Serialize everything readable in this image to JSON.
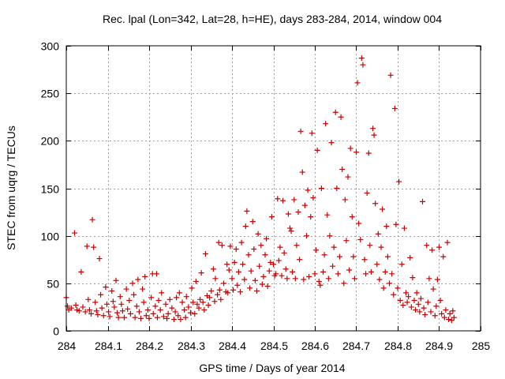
{
  "chart_data": {
    "type": "scatter",
    "title": "Rec. lpal (Lon=342, Lat=28, h=HE), days 283-284, 2014, window 004",
    "xlabel": "GPS time / Days of year 2014",
    "ylabel": "STEC from uqrg / TECUs",
    "xlim": [
      284,
      285
    ],
    "ylim": [
      0,
      300
    ],
    "grid": true,
    "marker": "plus",
    "colors": {
      "points": "#cc0000",
      "grid": "#a0a0a0",
      "axis": "#000000"
    },
    "x_ticks": [
      284,
      284.1,
      284.2,
      284.3,
      284.4,
      284.5,
      284.6,
      284.7,
      284.8,
      284.9,
      285
    ],
    "x_tick_labels": [
      "284",
      "284.1",
      "284.2",
      "284.3",
      "284.4",
      "284.5",
      "284.6",
      "284.7",
      "284.8",
      "284.9",
      "285"
    ],
    "y_ticks": [
      0,
      50,
      100,
      150,
      200,
      250,
      300
    ],
    "y_tick_labels": [
      "0",
      "50",
      "100",
      "150",
      "200",
      "250",
      "300"
    ],
    "series": [
      {
        "name": "STEC",
        "points": [
          [
            284.0,
            35
          ],
          [
            284.003,
            26
          ],
          [
            284.006,
            22
          ],
          [
            284.012,
            24
          ],
          [
            284.02,
            103
          ],
          [
            284.023,
            27
          ],
          [
            284.026,
            22
          ],
          [
            284.031,
            21
          ],
          [
            284.036,
            62
          ],
          [
            284.04,
            25
          ],
          [
            284.046,
            20
          ],
          [
            284.05,
            89
          ],
          [
            284.053,
            33
          ],
          [
            284.056,
            22
          ],
          [
            284.06,
            18
          ],
          [
            284.063,
            117
          ],
          [
            284.066,
            88
          ],
          [
            284.07,
            30
          ],
          [
            284.073,
            21
          ],
          [
            284.076,
            17
          ],
          [
            284.08,
            76
          ],
          [
            284.083,
            38
          ],
          [
            284.086,
            24
          ],
          [
            284.09,
            16
          ],
          [
            284.095,
            46
          ],
          [
            284.098,
            28
          ],
          [
            284.102,
            20
          ],
          [
            284.105,
            15
          ],
          [
            284.11,
            42
          ],
          [
            284.113,
            31
          ],
          [
            284.116,
            25
          ],
          [
            284.12,
            53
          ],
          [
            284.123,
            19
          ],
          [
            284.126,
            14
          ],
          [
            284.13,
            36
          ],
          [
            284.133,
            28
          ],
          [
            284.136,
            21
          ],
          [
            284.14,
            14
          ],
          [
            284.145,
            44
          ],
          [
            284.148,
            23
          ],
          [
            284.152,
            32
          ],
          [
            284.155,
            18
          ],
          [
            284.16,
            50
          ],
          [
            284.163,
            38
          ],
          [
            284.166,
            14
          ],
          [
            284.17,
            26
          ],
          [
            284.173,
            54
          ],
          [
            284.176,
            20
          ],
          [
            284.18,
            13
          ],
          [
            284.184,
            44
          ],
          [
            284.187,
            30
          ],
          [
            284.19,
            57
          ],
          [
            284.193,
            16
          ],
          [
            284.197,
            22
          ],
          [
            284.2,
            13
          ],
          [
            284.205,
            35
          ],
          [
            284.208,
            60
          ],
          [
            284.21,
            18
          ],
          [
            284.215,
            26
          ],
          [
            284.218,
            60
          ],
          [
            284.22,
            14
          ],
          [
            284.223,
            32
          ],
          [
            284.227,
            22
          ],
          [
            284.23,
            40
          ],
          [
            284.235,
            15
          ],
          [
            284.24,
            28
          ],
          [
            284.243,
            13
          ],
          [
            284.246,
            18
          ],
          [
            284.25,
            33
          ],
          [
            284.255,
            24
          ],
          [
            284.26,
            12
          ],
          [
            284.263,
            20
          ],
          [
            284.266,
            35
          ],
          [
            284.27,
            16
          ],
          [
            284.273,
            40
          ],
          [
            284.276,
            12
          ],
          [
            284.28,
            30
          ],
          [
            284.285,
            22
          ],
          [
            284.288,
            14
          ],
          [
            284.29,
            36
          ],
          [
            284.295,
            25
          ],
          [
            284.3,
            19
          ],
          [
            284.303,
            45
          ],
          [
            284.306,
            30
          ],
          [
            284.31,
            18
          ],
          [
            284.313,
            52
          ],
          [
            284.316,
            28
          ],
          [
            284.32,
            24
          ],
          [
            284.323,
            33
          ],
          [
            284.326,
            61
          ],
          [
            284.33,
            30
          ],
          [
            284.333,
            22
          ],
          [
            284.336,
            81
          ],
          [
            284.34,
            37
          ],
          [
            284.343,
            27
          ],
          [
            284.346,
            35
          ],
          [
            284.35,
            42
          ],
          [
            284.355,
            65
          ],
          [
            284.358,
            31
          ],
          [
            284.36,
            55
          ],
          [
            284.365,
            38
          ],
          [
            284.368,
            93
          ],
          [
            284.37,
            43
          ],
          [
            284.373,
            33
          ],
          [
            284.376,
            90
          ],
          [
            284.38,
            50
          ],
          [
            284.385,
            41
          ],
          [
            284.388,
            70
          ],
          [
            284.39,
            40
          ],
          [
            284.393,
            64
          ],
          [
            284.396,
            89
          ],
          [
            284.4,
            55
          ],
          [
            284.403,
            43
          ],
          [
            284.406,
            72
          ],
          [
            284.41,
            86
          ],
          [
            284.413,
            48
          ],
          [
            284.416,
            62
          ],
          [
            284.42,
            41
          ],
          [
            284.423,
            93
          ],
          [
            284.426,
            70
          ],
          [
            284.43,
            54
          ],
          [
            284.433,
            110
          ],
          [
            284.436,
            126
          ],
          [
            284.44,
            80
          ],
          [
            284.443,
            45
          ],
          [
            284.446,
            63
          ],
          [
            284.45,
            115
          ],
          [
            284.453,
            86
          ],
          [
            284.456,
            53
          ],
          [
            284.46,
            42
          ],
          [
            284.463,
            102
          ],
          [
            284.466,
            68
          ],
          [
            284.47,
            90
          ],
          [
            284.473,
            49
          ],
          [
            284.476,
            57
          ],
          [
            284.48,
            80
          ],
          [
            284.483,
            97
          ],
          [
            284.486,
            47
          ],
          [
            284.49,
            63
          ],
          [
            284.493,
            72
          ],
          [
            284.496,
            120
          ],
          [
            284.5,
            70
          ],
          [
            284.503,
            58
          ],
          [
            284.506,
            60
          ],
          [
            284.51,
            139
          ],
          [
            284.513,
            74
          ],
          [
            284.516,
            88
          ],
          [
            284.52,
            58
          ],
          [
            284.523,
            137
          ],
          [
            284.526,
            82
          ],
          [
            284.53,
            65
          ],
          [
            284.533,
            55
          ],
          [
            284.536,
            123
          ],
          [
            284.54,
            108
          ],
          [
            284.543,
            105
          ],
          [
            284.546,
            62
          ],
          [
            284.55,
            138
          ],
          [
            284.553,
            55
          ],
          [
            284.556,
            90
          ],
          [
            284.56,
            125
          ],
          [
            284.563,
            75
          ],
          [
            284.566,
            210
          ],
          [
            284.57,
            167
          ],
          [
            284.573,
            54
          ],
          [
            284.576,
            132
          ],
          [
            284.58,
            100
          ],
          [
            284.583,
            148
          ],
          [
            284.586,
            57
          ],
          [
            284.59,
            120
          ],
          [
            284.593,
            208
          ],
          [
            284.596,
            140
          ],
          [
            284.6,
            60
          ],
          [
            284.603,
            85
          ],
          [
            284.606,
            190
          ],
          [
            284.61,
            52
          ],
          [
            284.613,
            48
          ],
          [
            284.616,
            150
          ],
          [
            284.62,
            62
          ],
          [
            284.623,
            80
          ],
          [
            284.626,
            218
          ],
          [
            284.63,
            122
          ],
          [
            284.633,
            55
          ],
          [
            284.636,
            100
          ],
          [
            284.64,
            198
          ],
          [
            284.643,
            68
          ],
          [
            284.646,
            88
          ],
          [
            284.65,
            230
          ],
          [
            284.653,
            150
          ],
          [
            284.656,
            60
          ],
          [
            284.66,
            78
          ],
          [
            284.663,
            225
          ],
          [
            284.666,
            170
          ],
          [
            284.67,
            50
          ],
          [
            284.673,
            138
          ],
          [
            284.676,
            95
          ],
          [
            284.68,
            162
          ],
          [
            284.683,
            64
          ],
          [
            284.686,
            192
          ],
          [
            284.69,
            120
          ],
          [
            284.693,
            78
          ],
          [
            284.696,
            55
          ],
          [
            284.7,
            188
          ],
          [
            284.703,
            261
          ],
          [
            284.706,
            113
          ],
          [
            284.71,
            96
          ],
          [
            284.713,
            287
          ],
          [
            284.716,
            280
          ],
          [
            284.72,
            75
          ],
          [
            284.723,
            60
          ],
          [
            284.726,
            145
          ],
          [
            284.73,
            187
          ],
          [
            284.733,
            90
          ],
          [
            284.736,
            62
          ],
          [
            284.74,
            213
          ],
          [
            284.743,
            206
          ],
          [
            284.746,
            134
          ],
          [
            284.75,
            70
          ],
          [
            284.753,
            102
          ],
          [
            284.756,
            54
          ],
          [
            284.76,
            88
          ],
          [
            284.763,
            128
          ],
          [
            284.766,
            45
          ],
          [
            284.77,
            62
          ],
          [
            284.773,
            110
          ],
          [
            284.776,
            78
          ],
          [
            284.78,
            50
          ],
          [
            284.783,
            269
          ],
          [
            284.786,
            60
          ],
          [
            284.79,
            38
          ],
          [
            284.793,
            234
          ],
          [
            284.796,
            112
          ],
          [
            284.8,
            45
          ],
          [
            284.803,
            157
          ],
          [
            284.806,
            32
          ],
          [
            284.81,
            70
          ],
          [
            284.813,
            27
          ],
          [
            284.816,
            108
          ],
          [
            284.82,
            40
          ],
          [
            284.823,
            30
          ],
          [
            284.826,
            36
          ],
          [
            284.83,
            77
          ],
          [
            284.833,
            25
          ],
          [
            284.836,
            56
          ],
          [
            284.84,
            32
          ],
          [
            284.843,
            22
          ],
          [
            284.846,
            40
          ],
          [
            284.85,
            28
          ],
          [
            284.853,
            20
          ],
          [
            284.856,
            34
          ],
          [
            284.86,
            136
          ],
          [
            284.863,
            24
          ],
          [
            284.866,
            17
          ],
          [
            284.87,
            90
          ],
          [
            284.873,
            30
          ],
          [
            284.876,
            55
          ],
          [
            284.88,
            20
          ],
          [
            284.883,
            85
          ],
          [
            284.886,
            44
          ],
          [
            284.89,
            16
          ],
          [
            284.893,
            26
          ],
          [
            284.896,
            54
          ],
          [
            284.9,
            88
          ],
          [
            284.903,
            32
          ],
          [
            284.906,
            18
          ],
          [
            284.91,
            78
          ],
          [
            284.913,
            14
          ],
          [
            284.916,
            22
          ],
          [
            284.92,
            93
          ],
          [
            284.923,
            12
          ],
          [
            284.926,
            18
          ],
          [
            284.93,
            11
          ],
          [
            284.933,
            21
          ],
          [
            284.936,
            14
          ]
        ]
      }
    ]
  }
}
